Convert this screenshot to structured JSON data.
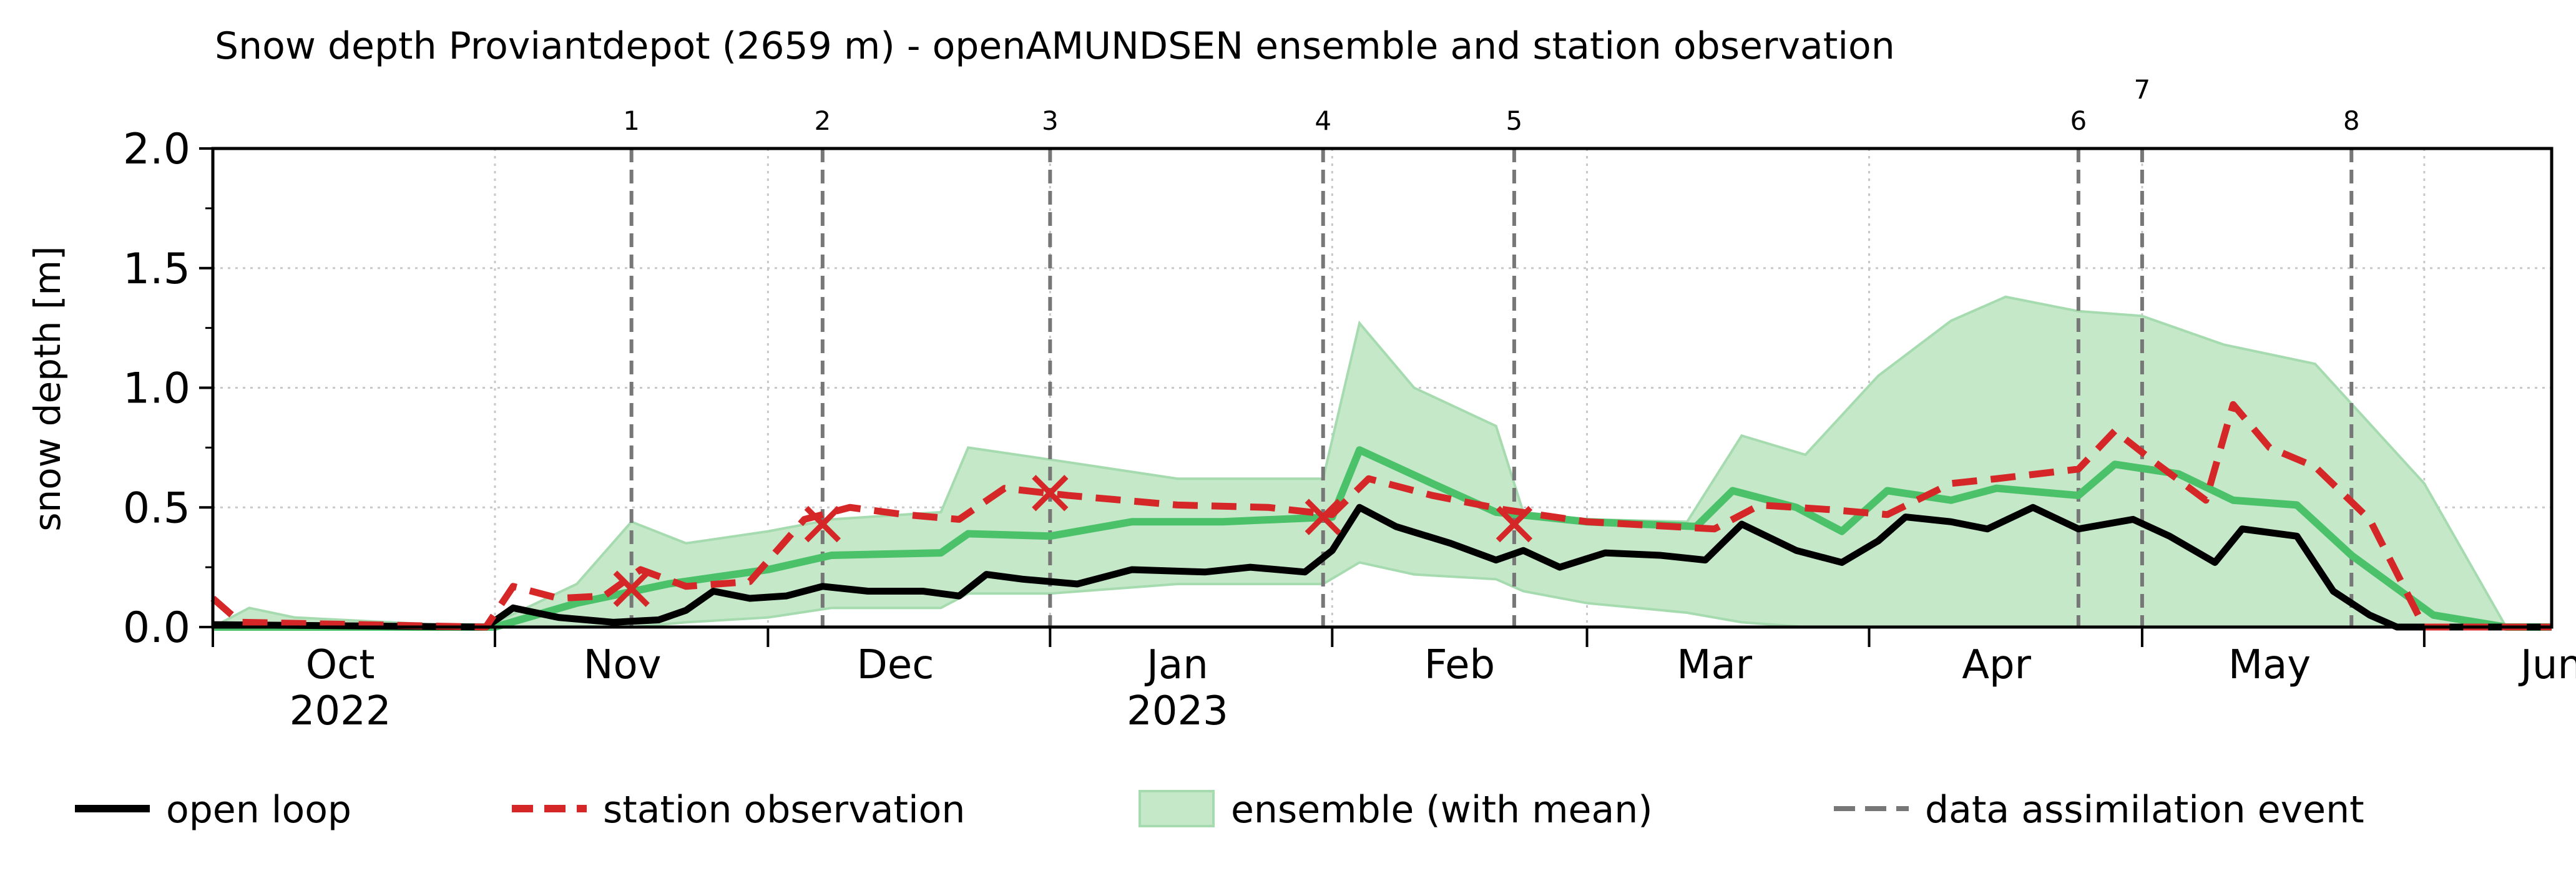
{
  "chart_data": {
    "type": "line",
    "title": "Snow depth Proviantdepot (2659 m) - openAMUNDSEN ensemble and station observation",
    "ylabel": "snow depth [m]",
    "xlabel": "",
    "ylim": [
      0,
      2.0
    ],
    "xlim": [
      "2022-10-01",
      "2023-06-15"
    ],
    "y_ticks": [
      "0.0",
      "0.5",
      "1.0",
      "1.5",
      "2.0"
    ],
    "month_labels": [
      {
        "date": "2022-10-15",
        "label": "Oct",
        "sub": "2022"
      },
      {
        "date": "2022-11-15",
        "label": "Nov",
        "sub": ""
      },
      {
        "date": "2022-12-15",
        "label": "Dec",
        "sub": ""
      },
      {
        "date": "2023-01-15",
        "label": "Jan",
        "sub": "2023"
      },
      {
        "date": "2023-02-15",
        "label": "Feb",
        "sub": ""
      },
      {
        "date": "2023-03-15",
        "label": "Mar",
        "sub": ""
      },
      {
        "date": "2023-04-15",
        "label": "Apr",
        "sub": ""
      },
      {
        "date": "2023-05-15",
        "label": "May",
        "sub": ""
      },
      {
        "date": "2023-06-15",
        "label": "Jun",
        "sub": ""
      }
    ],
    "month_boundaries": [
      "2022-11-01",
      "2022-12-01",
      "2023-01-01",
      "2023-02-01",
      "2023-03-01",
      "2023-04-01",
      "2023-05-01",
      "2023-06-01"
    ],
    "grid": true,
    "assimilation_events": [
      {
        "label": "1",
        "date": "2022-11-16"
      },
      {
        "label": "2",
        "date": "2022-12-07"
      },
      {
        "label": "3",
        "date": "2023-01-01"
      },
      {
        "label": "4",
        "date": "2023-01-31"
      },
      {
        "label": "5",
        "date": "2023-02-21"
      },
      {
        "label": "6",
        "date": "2023-04-24"
      },
      {
        "label": "7",
        "date": "2023-05-01"
      },
      {
        "label": "8",
        "date": "2023-05-24"
      }
    ],
    "series": [
      {
        "name": "open loop",
        "color": "#000000",
        "style": "solid",
        "points": [
          [
            "2022-10-01",
            0.01
          ],
          [
            "2022-10-31",
            0.0
          ],
          [
            "2022-11-03",
            0.08
          ],
          [
            "2022-11-08",
            0.04
          ],
          [
            "2022-11-14",
            0.02
          ],
          [
            "2022-11-19",
            0.03
          ],
          [
            "2022-11-22",
            0.07
          ],
          [
            "2022-11-25",
            0.15
          ],
          [
            "2022-11-29",
            0.12
          ],
          [
            "2022-12-03",
            0.13
          ],
          [
            "2022-12-07",
            0.17
          ],
          [
            "2022-12-12",
            0.15
          ],
          [
            "2022-12-18",
            0.15
          ],
          [
            "2022-12-22",
            0.13
          ],
          [
            "2022-12-25",
            0.22
          ],
          [
            "2022-12-29",
            0.2
          ],
          [
            "2023-01-01",
            0.19
          ],
          [
            "2023-01-04",
            0.18
          ],
          [
            "2023-01-10",
            0.24
          ],
          [
            "2023-01-18",
            0.23
          ],
          [
            "2023-01-23",
            0.25
          ],
          [
            "2023-01-29",
            0.23
          ],
          [
            "2023-02-01",
            0.32
          ],
          [
            "2023-02-04",
            0.5
          ],
          [
            "2023-02-08",
            0.42
          ],
          [
            "2023-02-14",
            0.35
          ],
          [
            "2023-02-19",
            0.28
          ],
          [
            "2023-02-22",
            0.32
          ],
          [
            "2023-02-26",
            0.25
          ],
          [
            "2023-03-03",
            0.31
          ],
          [
            "2023-03-09",
            0.3
          ],
          [
            "2023-03-14",
            0.28
          ],
          [
            "2023-03-18",
            0.43
          ],
          [
            "2023-03-24",
            0.32
          ],
          [
            "2023-03-29",
            0.27
          ],
          [
            "2023-04-02",
            0.36
          ],
          [
            "2023-04-05",
            0.46
          ],
          [
            "2023-04-10",
            0.44
          ],
          [
            "2023-04-14",
            0.41
          ],
          [
            "2023-04-19",
            0.5
          ],
          [
            "2023-04-24",
            0.41
          ],
          [
            "2023-04-30",
            0.45
          ],
          [
            "2023-05-04",
            0.38
          ],
          [
            "2023-05-09",
            0.27
          ],
          [
            "2023-05-12",
            0.41
          ],
          [
            "2023-05-18",
            0.38
          ],
          [
            "2023-05-22",
            0.15
          ],
          [
            "2023-05-26",
            0.05
          ],
          [
            "2023-05-29",
            0.0
          ],
          [
            "2023-06-15",
            0.0
          ]
        ]
      },
      {
        "name": "station observation",
        "color": "#d62728",
        "style": "dashed",
        "points": [
          [
            "2022-10-01",
            0.12
          ],
          [
            "2022-10-04",
            0.02
          ],
          [
            "2022-10-31",
            0.0
          ],
          [
            "2022-11-03",
            0.17
          ],
          [
            "2022-11-08",
            0.12
          ],
          [
            "2022-11-13",
            0.13
          ],
          [
            "2022-11-17",
            0.24
          ],
          [
            "2022-11-22",
            0.17
          ],
          [
            "2022-11-29",
            0.19
          ],
          [
            "2022-12-05",
            0.45
          ],
          [
            "2022-12-10",
            0.5
          ],
          [
            "2022-12-16",
            0.47
          ],
          [
            "2022-12-22",
            0.45
          ],
          [
            "2022-12-27",
            0.58
          ],
          [
            "2023-01-03",
            0.55
          ],
          [
            "2023-01-15",
            0.51
          ],
          [
            "2023-01-25",
            0.5
          ],
          [
            "2023-02-01",
            0.47
          ],
          [
            "2023-02-05",
            0.62
          ],
          [
            "2023-02-12",
            0.55
          ],
          [
            "2023-02-20",
            0.49
          ],
          [
            "2023-03-01",
            0.44
          ],
          [
            "2023-03-15",
            0.41
          ],
          [
            "2023-03-20",
            0.51
          ],
          [
            "2023-03-28",
            0.49
          ],
          [
            "2023-04-03",
            0.47
          ],
          [
            "2023-04-10",
            0.6
          ],
          [
            "2023-04-15",
            0.62
          ],
          [
            "2023-04-24",
            0.66
          ],
          [
            "2023-04-28",
            0.82
          ],
          [
            "2023-05-02",
            0.7
          ],
          [
            "2023-05-08",
            0.53
          ],
          [
            "2023-05-11",
            0.93
          ],
          [
            "2023-05-15",
            0.75
          ],
          [
            "2023-05-20",
            0.67
          ],
          [
            "2023-05-26",
            0.45
          ],
          [
            "2023-06-01",
            0.0
          ],
          [
            "2023-06-15",
            0.0
          ]
        ]
      },
      {
        "name": "ensemble (with mean)",
        "color": "#4bc16a",
        "fill": "#c5e8c9",
        "style": "band",
        "mean": [
          [
            "2022-10-01",
            0.0
          ],
          [
            "2022-11-01",
            0.0
          ],
          [
            "2022-11-10",
            0.1
          ],
          [
            "2022-11-20",
            0.18
          ],
          [
            "2022-12-01",
            0.24
          ],
          [
            "2022-12-08",
            0.3
          ],
          [
            "2022-12-20",
            0.31
          ],
          [
            "2022-12-23",
            0.39
          ],
          [
            "2023-01-01",
            0.38
          ],
          [
            "2023-01-10",
            0.44
          ],
          [
            "2023-01-20",
            0.44
          ],
          [
            "2023-02-01",
            0.46
          ],
          [
            "2023-02-04",
            0.74
          ],
          [
            "2023-02-12",
            0.6
          ],
          [
            "2023-02-19",
            0.48
          ],
          [
            "2023-03-01",
            0.44
          ],
          [
            "2023-03-13",
            0.42
          ],
          [
            "2023-03-17",
            0.57
          ],
          [
            "2023-03-24",
            0.5
          ],
          [
            "2023-03-29",
            0.4
          ],
          [
            "2023-04-03",
            0.57
          ],
          [
            "2023-04-10",
            0.53
          ],
          [
            "2023-04-15",
            0.58
          ],
          [
            "2023-04-24",
            0.55
          ],
          [
            "2023-04-28",
            0.68
          ],
          [
            "2023-05-05",
            0.64
          ],
          [
            "2023-05-11",
            0.53
          ],
          [
            "2023-05-18",
            0.51
          ],
          [
            "2023-05-24",
            0.3
          ],
          [
            "2023-06-02",
            0.05
          ],
          [
            "2023-06-10",
            0.0
          ],
          [
            "2023-06-15",
            0.0
          ]
        ],
        "band": [
          [
            "2022-10-01",
            0.0,
            0.0
          ],
          [
            "2022-10-05",
            0.0,
            0.08
          ],
          [
            "2022-10-10",
            0.0,
            0.04
          ],
          [
            "2022-10-31",
            0.0,
            0.0
          ],
          [
            "2022-11-10",
            0.0,
            0.18
          ],
          [
            "2022-11-16",
            0.0,
            0.44
          ],
          [
            "2022-11-22",
            0.02,
            0.35
          ],
          [
            "2022-12-01",
            0.04,
            0.4
          ],
          [
            "2022-12-08",
            0.08,
            0.45
          ],
          [
            "2022-12-20",
            0.08,
            0.48
          ],
          [
            "2022-12-23",
            0.14,
            0.75
          ],
          [
            "2023-01-01",
            0.14,
            0.7
          ],
          [
            "2023-01-15",
            0.18,
            0.62
          ],
          [
            "2023-01-31",
            0.18,
            0.62
          ],
          [
            "2023-02-04",
            0.27,
            1.27
          ],
          [
            "2023-02-10",
            0.22,
            1.0
          ],
          [
            "2023-02-19",
            0.2,
            0.84
          ],
          [
            "2023-02-22",
            0.15,
            0.48
          ],
          [
            "2023-03-01",
            0.1,
            0.45
          ],
          [
            "2023-03-12",
            0.06,
            0.44
          ],
          [
            "2023-03-18",
            0.02,
            0.8
          ],
          [
            "2023-03-25",
            0.0,
            0.72
          ],
          [
            "2023-04-02",
            0.0,
            1.05
          ],
          [
            "2023-04-10",
            0.0,
            1.28
          ],
          [
            "2023-04-16",
            0.0,
            1.38
          ],
          [
            "2023-04-24",
            0.0,
            1.32
          ],
          [
            "2023-05-01",
            0.0,
            1.3
          ],
          [
            "2023-05-10",
            0.0,
            1.18
          ],
          [
            "2023-05-20",
            0.0,
            1.1
          ],
          [
            "2023-06-01",
            0.0,
            0.6
          ],
          [
            "2023-06-10",
            0.0,
            0.0
          ],
          [
            "2023-06-15",
            0.0,
            0.0
          ]
        ]
      },
      {
        "name": "data assimilation event",
        "color": "#777777",
        "style": "dashed-vertical"
      }
    ],
    "markers": [
      {
        "date": "2022-11-16",
        "y": 0.16
      },
      {
        "date": "2022-12-07",
        "y": 0.43
      },
      {
        "date": "2023-01-01",
        "y": 0.56
      },
      {
        "date": "2023-01-31",
        "y": 0.46
      },
      {
        "date": "2023-02-21",
        "y": 0.43
      }
    ],
    "legend_placement": "bottom"
  }
}
